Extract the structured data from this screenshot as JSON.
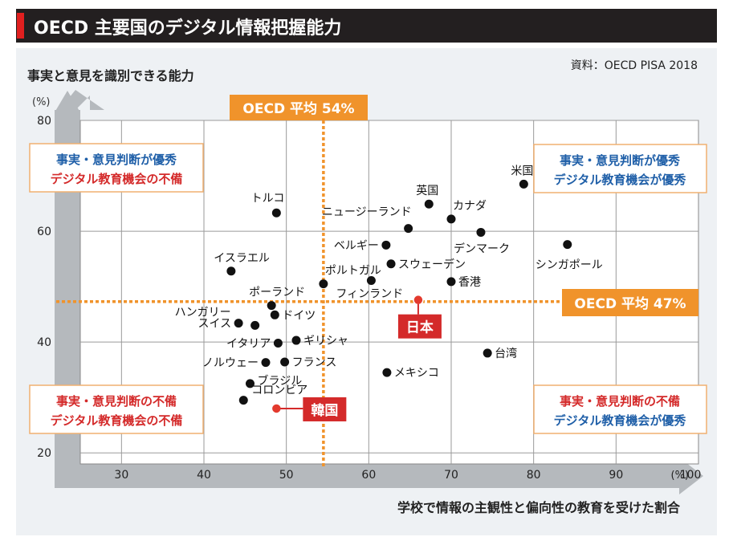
{
  "title": "OECD 主要国のデジタル情報把握能力",
  "source": "資料：OECD PISA 2018",
  "chart_data": {
    "type": "scatter",
    "ylabel": "事実と意見を識別できる能力",
    "xlabel": "学校で情報の主観性と偏向性の教育を受けた割合",
    "y_unit": "(%)",
    "x_unit": "(%)",
    "xlim": [
      25,
      100
    ],
    "ylim": [
      18,
      80
    ],
    "x_ticks": [
      30,
      40,
      50,
      60,
      70,
      80,
      90,
      100
    ],
    "y_ticks": [
      20,
      40,
      60,
      80
    ],
    "oecd_avg_x_label": "OECD 平均 54%",
    "oecd_avg_y_label": "OECD 平均 47%",
    "oecd_avg_x": 54.5,
    "oecd_avg_y": 47.3,
    "quadrants": {
      "top_left": [
        "事実・意見判断が優秀",
        "デジタル教育機会の不備"
      ],
      "top_right": [
        "事実・意見判断が優秀",
        "デジタル教育機会が優秀"
      ],
      "bottom_left": [
        "事実・意見判断の不備",
        "デジタル教育機会の不備"
      ],
      "bottom_right": [
        "事実・意見判断の不備",
        "デジタル教育機会が優秀"
      ]
    },
    "points": [
      {
        "label": "米国",
        "x": 78.8,
        "y": 68.5,
        "pos": "top"
      },
      {
        "label": "英国",
        "x": 67.3,
        "y": 64.9,
        "pos": "top"
      },
      {
        "label": "カナダ",
        "x": 70.0,
        "y": 62.2,
        "pos": "topright"
      },
      {
        "label": "トルコ",
        "x": 48.8,
        "y": 63.3,
        "pos": "topleft"
      },
      {
        "label": "ニュージーランド",
        "x": 64.8,
        "y": 60.5,
        "pos": "topleft"
      },
      {
        "label": "デンマーク",
        "x": 73.6,
        "y": 59.8,
        "pos": "bottomright"
      },
      {
        "label": "シンガポール",
        "x": 84.1,
        "y": 57.6,
        "pos": "bottomright"
      },
      {
        "label": "ベルギー",
        "x": 62.1,
        "y": 57.5,
        "pos": "left"
      },
      {
        "label": "スウェーデン",
        "x": 62.7,
        "y": 54.1,
        "pos": "right"
      },
      {
        "label": "イスラエル",
        "x": 43.3,
        "y": 52.8,
        "pos": "topleft"
      },
      {
        "label": "ポルトガル",
        "x": 54.5,
        "y": 50.5,
        "pos": "topright"
      },
      {
        "label": "フィンランド",
        "x": 60.3,
        "y": 51.1,
        "pos": "bottomright"
      },
      {
        "label": "香港",
        "x": 70.0,
        "y": 50.9,
        "pos": "right"
      },
      {
        "label": "ポーランド",
        "x": 48.2,
        "y": 46.6,
        "pos": "topleft"
      },
      {
        "label": "ドイツ",
        "x": 48.6,
        "y": 44.9,
        "pos": "right"
      },
      {
        "label": "ハンガリー",
        "x": 46.2,
        "y": 43.0,
        "pos": "topleft"
      },
      {
        "label": "スイス",
        "x": 44.2,
        "y": 43.4,
        "pos": "left"
      },
      {
        "label": "ギリシャ",
        "x": 51.2,
        "y": 40.3,
        "pos": "right"
      },
      {
        "label": "イタリア",
        "x": 49.0,
        "y": 39.8,
        "pos": "left"
      },
      {
        "label": "台湾",
        "x": 74.4,
        "y": 38.0,
        "pos": "right"
      },
      {
        "label": "フランス",
        "x": 49.8,
        "y": 36.4,
        "pos": "right"
      },
      {
        "label": "ノルウェー",
        "x": 47.5,
        "y": 36.3,
        "pos": "left"
      },
      {
        "label": "メキシコ",
        "x": 62.2,
        "y": 34.5,
        "pos": "right"
      },
      {
        "label": "ブラジル",
        "x": 45.6,
        "y": 32.5,
        "pos": "right"
      },
      {
        "label": "コロンビア",
        "x": 44.8,
        "y": 29.5,
        "pos": "topright"
      }
    ],
    "highlights": [
      {
        "label": "日本",
        "x": 66.0,
        "y": 47.6
      },
      {
        "label": "韓国",
        "x": 48.8,
        "y": 28.0
      }
    ]
  }
}
